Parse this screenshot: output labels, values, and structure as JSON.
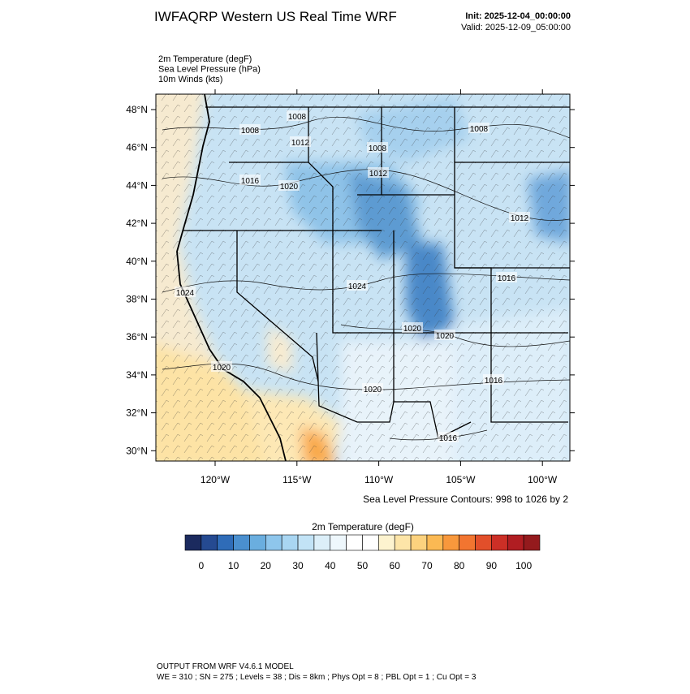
{
  "header": {
    "title": "IWFAQRP Western US Real Time WRF",
    "init": "Init: 2025-12-04_00:00:00",
    "valid": "Valid: 2025-12-09_05:00:00"
  },
  "fields": [
    "2m Temperature   (degF)",
    "Sea Level Pressure   (hPa)",
    "10m Winds   (kts)"
  ],
  "map": {
    "lat_ticks": [
      "48°N",
      "46°N",
      "44°N",
      "42°N",
      "40°N",
      "38°N",
      "36°N",
      "34°N",
      "32°N",
      "30°N"
    ],
    "lon_ticks": [
      "120°W",
      "115°W",
      "110°W",
      "105°W",
      "100°W"
    ],
    "contour_labels": [
      "1008",
      "1008",
      "1012",
      "1008",
      "1008",
      "1012",
      "1016",
      "1020",
      "1012",
      "1016",
      "1024",
      "1024",
      "1020",
      "1020",
      "1020",
      "1016",
      "1020",
      "1016"
    ],
    "note": "Sea Level Pressure Contours: 998 to 1026 by 2"
  },
  "colorbar": {
    "title": "2m Temperature  (degF)",
    "ticks": [
      "0",
      "10",
      "20",
      "30",
      "40",
      "50",
      "60",
      "70",
      "80",
      "90",
      "100"
    ],
    "colors": [
      "#1b2a5e",
      "#254a91",
      "#2f6cb8",
      "#4a8fcf",
      "#6aaedf",
      "#8ec6ec",
      "#a9d6f2",
      "#c2e3f6",
      "#dceff9",
      "#eef7fc",
      "#ffffff",
      "#ffffff",
      "#fdf3cf",
      "#fde5a8",
      "#fcd27e",
      "#fbb953",
      "#f8983c",
      "#f27530",
      "#e24f2a",
      "#cc2f26",
      "#b01d22",
      "#941a1d"
    ]
  },
  "footer": [
    "OUTPUT FROM WRF V4.6.1 MODEL",
    "WE = 310 ; SN = 275 ; Levels = 38 ; Dis = 8km ; Phys Opt = 8 ; PBL Opt = 1 ; Cu Opt = 3"
  ]
}
